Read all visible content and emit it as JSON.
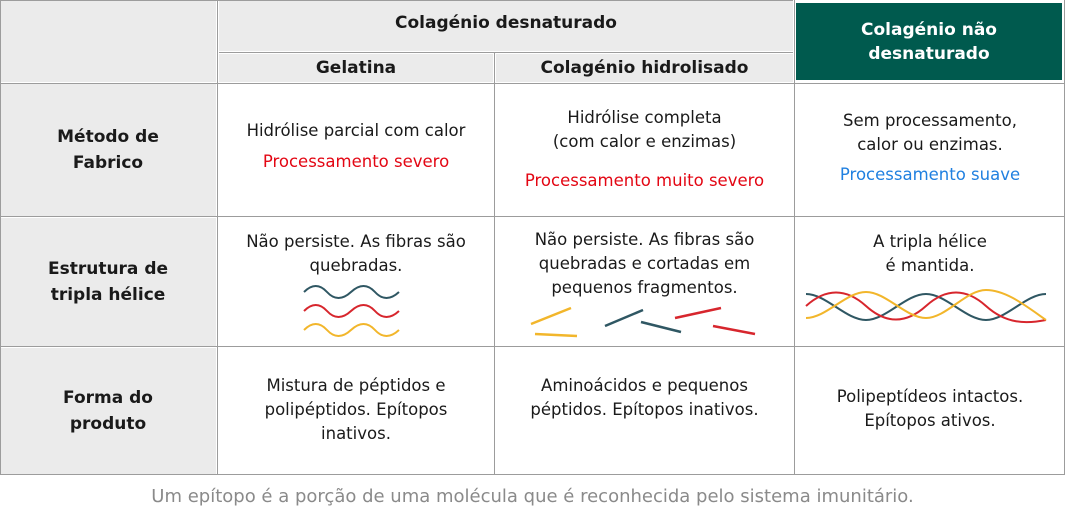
{
  "table": {
    "group_header": "Colagénio desnaturado",
    "col_gelatina": "Gelatina",
    "col_hidrolisado": "Colagénio hidrolisado",
    "col_nao_desnaturado": "Colagénio não desnaturado",
    "rows": [
      {
        "label": "Método de Fabrico",
        "gelatina": "Hidrólise parcial com calor",
        "gelatina_note": "Processamento severo",
        "hidrolisado": "Hidrólise completa (com calor e enzimas)",
        "hidrolisado_note": "Processamento muito severo",
        "nao_desnaturado": "Sem processamento, calor ou enzimas.",
        "nao_desnaturado_note": "Processamento suave"
      },
      {
        "label": "Estrutura de tripla hélice",
        "gelatina": "Não persiste. As fibras são quebradas.",
        "hidrolisado": "Não persiste. As fibras são quebradas e cortadas em pequenos fragmentos.",
        "nao_desnaturado": "A tripla hélice é mantida."
      },
      {
        "label": "Forma do produto",
        "gelatina": "Mistura de péptidos e polipéptidos. Epítopos inativos.",
        "hidrolisado": "Aminoácidos e pequenos péptidos. Epítopos inativos.",
        "nao_desnaturado": "Polipeptídeos intactos. Epítopos ativos."
      }
    ]
  },
  "footnote": "Um epítopo é a porção de uma molécula que é reconhecida pelo sistema imunitário.",
  "colors": {
    "header_dark": "#005a4e",
    "processing_severe": "#e30613",
    "processing_mild": "#2080e0",
    "strand_teal": "#2f5763",
    "strand_red": "#d7262d",
    "strand_yellow": "#f2b62b"
  }
}
